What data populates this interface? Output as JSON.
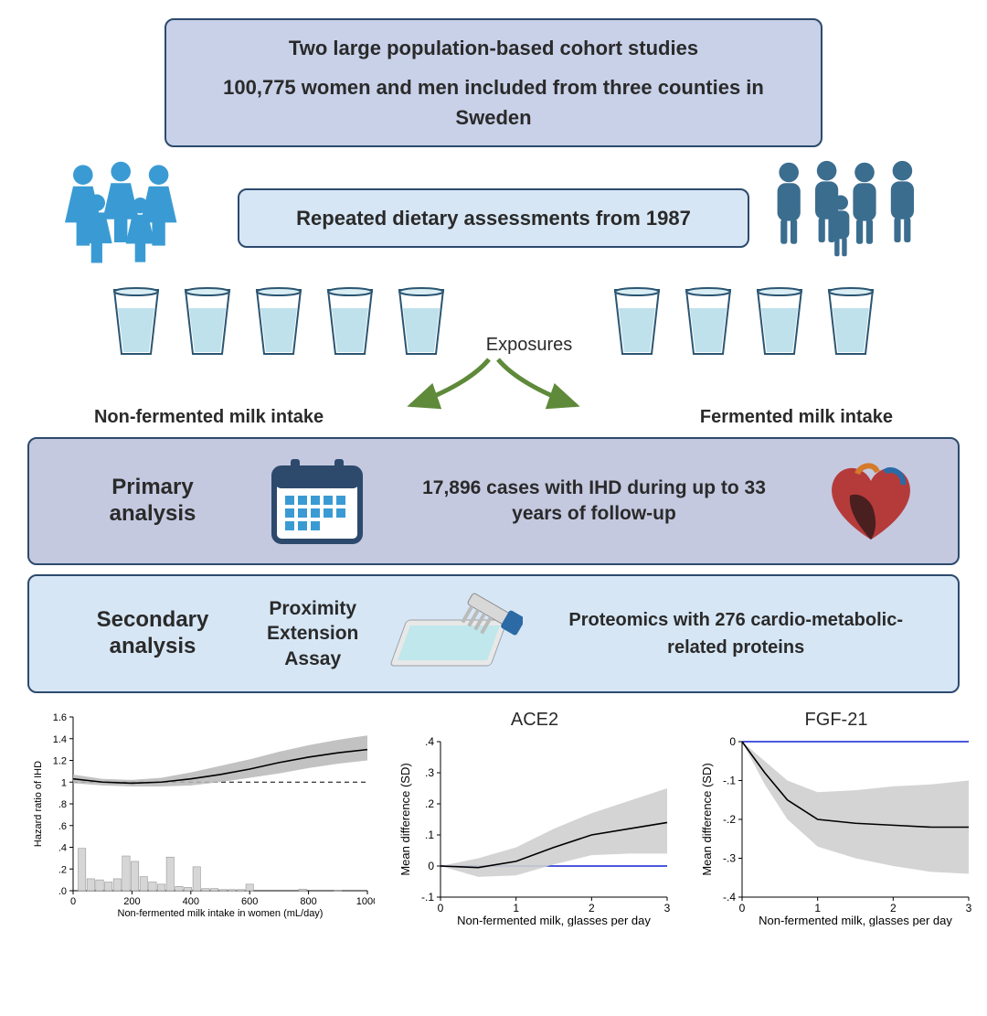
{
  "colors": {
    "box1_bg": "#c8d1e8",
    "box2_bg": "#d6e6f5",
    "primary_bg": "#c4c9e0",
    "border": "#2d4a6d",
    "people_female": "#3a9bd4",
    "people_male": "#3b6d8f",
    "glass_rim": "#3b6d8f",
    "glass_fill": "#bfe1eb",
    "arrow": "#5e8a3a",
    "curve": "#000000",
    "ci_fill": "#c7c7c7",
    "bar_fill": "#d0d0d0",
    "blue_line": "#1020d0"
  },
  "box1": {
    "line1": "Two large population-based cohort studies",
    "line2": "100,775 women and men included from three counties in Sweden"
  },
  "box2": {
    "text": "Repeated dietary assessments from 1987"
  },
  "exposures": {
    "label": "Exposures",
    "left": "Non-fermented milk intake",
    "right": "Fermented milk intake"
  },
  "primary": {
    "title": "Primary analysis",
    "text": "17,896 cases with IHD during up to 33 years of follow-up"
  },
  "secondary": {
    "title": "Secondary analysis",
    "pea_p": "P",
    "pea_roximity": "roximity",
    "pea_e": "E",
    "pea_xtension": "xtension",
    "pea_a": "A",
    "pea_ssay": "ssay",
    "text": "Proteomics with 276 cardio-metabolic-related proteins"
  },
  "chart1": {
    "type": "line+histogram",
    "title": "",
    "ylabel": "Hazard ratio of IHD",
    "xlabel": "Non-fermented milk intake in women (mL/day)",
    "xlim": [
      0,
      1000
    ],
    "xticks": [
      0,
      200,
      400,
      600,
      800,
      1000
    ],
    "ylim": [
      0,
      1.6
    ],
    "yticks": [
      0,
      0.2,
      0.4,
      0.6,
      0.8,
      1.0,
      1.2,
      1.4,
      1.6
    ],
    "reference": 1.0,
    "curve_x": [
      0,
      100,
      200,
      300,
      400,
      500,
      600,
      700,
      800,
      900,
      1000
    ],
    "curve_y": [
      1.03,
      1.0,
      0.99,
      1.0,
      1.03,
      1.07,
      1.12,
      1.18,
      1.23,
      1.27,
      1.3
    ],
    "ci_lo": [
      0.99,
      0.97,
      0.96,
      0.96,
      0.97,
      1.0,
      1.04,
      1.08,
      1.13,
      1.17,
      1.2
    ],
    "ci_hi": [
      1.07,
      1.03,
      1.02,
      1.04,
      1.09,
      1.15,
      1.21,
      1.28,
      1.34,
      1.39,
      1.43
    ],
    "hist_x": [
      30,
      60,
      90,
      120,
      150,
      180,
      210,
      240,
      270,
      300,
      330,
      360,
      390,
      420,
      450,
      480,
      510,
      540,
      570,
      600,
      780,
      900
    ],
    "hist_y": [
      0.39,
      0.11,
      0.1,
      0.08,
      0.11,
      0.32,
      0.27,
      0.13,
      0.08,
      0.06,
      0.31,
      0.04,
      0.03,
      0.22,
      0.02,
      0.02,
      0.01,
      0.01,
      0.01,
      0.06,
      0.015,
      0.005
    ],
    "hist_bar_width": 26,
    "ci_color": "#b7b7b7",
    "curve_color": "#000",
    "bar_color": "#d6d6d6"
  },
  "chart2": {
    "type": "line",
    "title": "ACE2",
    "ylabel": "Mean difference (SD)",
    "xlabel": "Non-fermented milk, glasses per day",
    "xlim": [
      0,
      3
    ],
    "xticks": [
      0,
      1,
      2,
      3
    ],
    "ylim": [
      -0.1,
      0.4
    ],
    "yticks": [
      -0.1,
      0,
      0.1,
      0.2,
      0.3,
      0.4
    ],
    "reference": 0,
    "curve_x": [
      0,
      0.5,
      1.0,
      1.5,
      2.0,
      2.5,
      3.0
    ],
    "curve_y": [
      0,
      -0.005,
      0.015,
      0.06,
      0.1,
      0.12,
      0.14
    ],
    "ci_lo": [
      0,
      -0.035,
      -0.03,
      0.005,
      0.035,
      0.04,
      0.04
    ],
    "ci_hi": [
      0,
      0.025,
      0.06,
      0.12,
      0.17,
      0.21,
      0.25
    ],
    "ci_color": "#cfcfcf",
    "curve_color": "#000"
  },
  "chart3": {
    "type": "line",
    "title": "FGF-21",
    "ylabel": "Mean difference (SD)",
    "xlabel": "Non-fermented milk, glasses per day",
    "xlim": [
      0,
      3
    ],
    "xticks": [
      0,
      1,
      2,
      3
    ],
    "ylim": [
      -0.4,
      0.0
    ],
    "yticks": [
      -0.4,
      -0.3,
      -0.2,
      -0.1,
      0
    ],
    "reference": 0,
    "curve_x": [
      0,
      0.3,
      0.6,
      1.0,
      1.5,
      2.0,
      2.5,
      3.0
    ],
    "curve_y": [
      0,
      -0.08,
      -0.15,
      -0.2,
      -0.21,
      -0.215,
      -0.22,
      -0.22
    ],
    "ci_lo": [
      0,
      -0.11,
      -0.2,
      -0.27,
      -0.3,
      -0.32,
      -0.335,
      -0.34
    ],
    "ci_hi": [
      0,
      -0.05,
      -0.1,
      -0.13,
      -0.125,
      -0.115,
      -0.11,
      -0.1
    ],
    "ci_color": "#cfcfcf",
    "curve_color": "#000"
  }
}
